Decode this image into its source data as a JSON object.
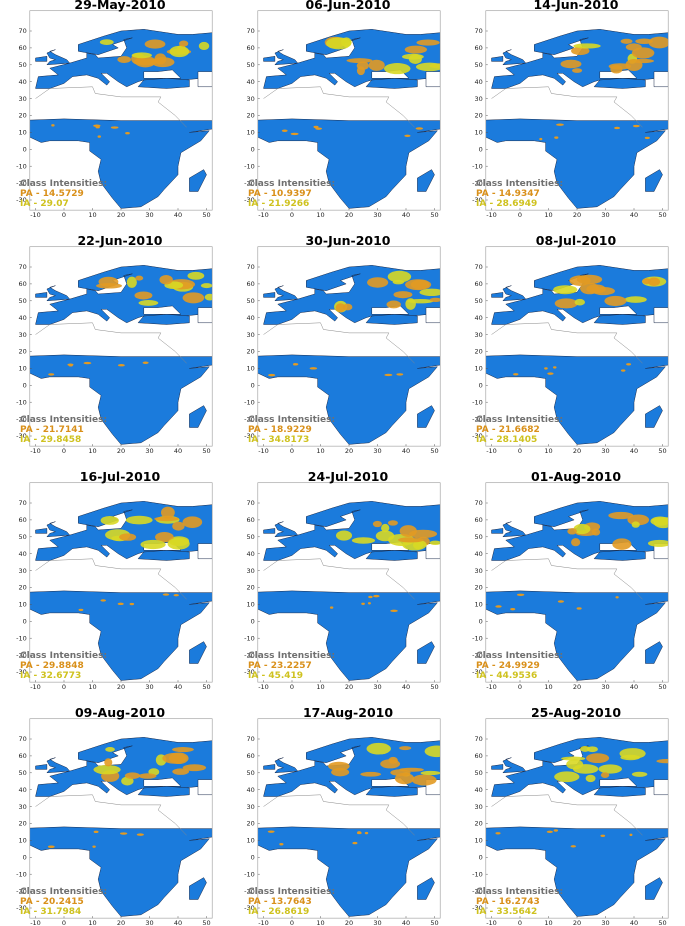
{
  "xticks": [
    -10,
    0,
    10,
    20,
    30,
    40,
    50
  ],
  "yticks": [
    70,
    60,
    50,
    40,
    30,
    20,
    10,
    0,
    -10,
    -20,
    -30
  ],
  "panels": [
    {
      "title": "29-May-2010",
      "legend_title": "Class Intensities:",
      "pa": "PA - 14.5729",
      "ia": "IA - 29.07"
    },
    {
      "title": "06-Jun-2010",
      "legend_title": "Class Intensities:",
      "pa": "PA - 10.9397",
      "ia": "IA - 21.9266"
    },
    {
      "title": "14-Jun-2010",
      "legend_title": "Class Intensities:",
      "pa": "PA - 14.9347",
      "ia": "IA - 28.6949"
    },
    {
      "title": "22-Jun-2010",
      "legend_title": "Class Intensities:",
      "pa": "PA - 21.7141",
      "ia": "IA - 29.8458"
    },
    {
      "title": "30-Jun-2010",
      "legend_title": "Class Intensities:",
      "pa": "PA - 18.9229",
      "ia": "IA - 34.8173"
    },
    {
      "title": "08-Jul-2010",
      "legend_title": "Class Intensities:",
      "pa": "PA - 21.6682",
      "ia": "IA - 28.1405"
    },
    {
      "title": "16-Jul-2010",
      "legend_title": "Class Intensities:",
      "pa": "PA - 29.8848",
      "ia": "IA - 32.6773"
    },
    {
      "title": "24-Jul-2010",
      "legend_title": "Class Intensities:",
      "pa": "PA - 23.2257",
      "ia": "IA - 45.419"
    },
    {
      "title": "01-Aug-2010",
      "legend_title": "Class Intensities:",
      "pa": "PA - 24.9929",
      "ia": "IA - 44.9536"
    },
    {
      "title": "09-Aug-2010",
      "legend_title": "Class Intensities:",
      "pa": "PA - 20.2415",
      "ia": "IA - 31.7984"
    },
    {
      "title": "17-Aug-2010",
      "legend_title": "Class Intensities:",
      "pa": "PA - 13.7643",
      "ia": "IA - 26.8619"
    },
    {
      "title": "25-Aug-2010",
      "legend_title": "Class Intensities:",
      "pa": "PA - 16.2743",
      "ia": "IA - 33.5642"
    }
  ]
}
